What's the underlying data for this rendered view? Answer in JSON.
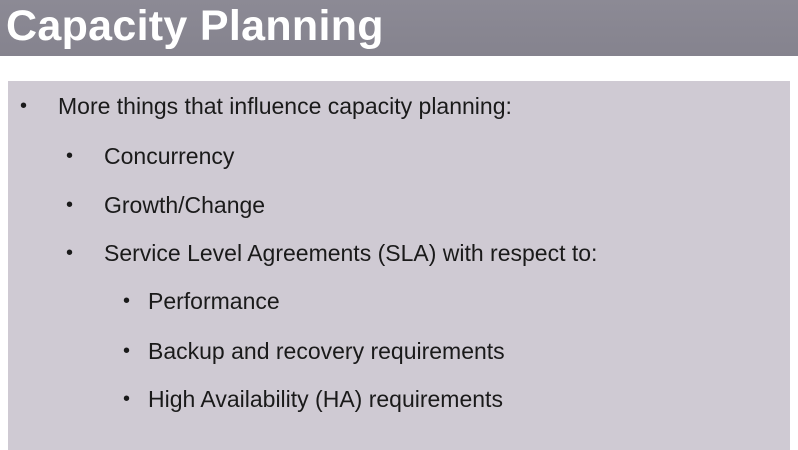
{
  "slide": {
    "title": "Capacity Planning",
    "bullets": [
      {
        "level": 1,
        "text": "More things that influence capacity planning:"
      },
      {
        "level": 2,
        "text": "Concurrency"
      },
      {
        "level": 2,
        "text": "Growth/Change"
      },
      {
        "level": 2,
        "text": "Service Level Agreements (SLA) with respect to:"
      },
      {
        "level": 3,
        "text": "Performance"
      },
      {
        "level": 3,
        "text": "Backup and recovery requirements"
      },
      {
        "level": 3,
        "text": "High Availability (HA) requirements"
      }
    ],
    "bullet_symbol": "•"
  }
}
